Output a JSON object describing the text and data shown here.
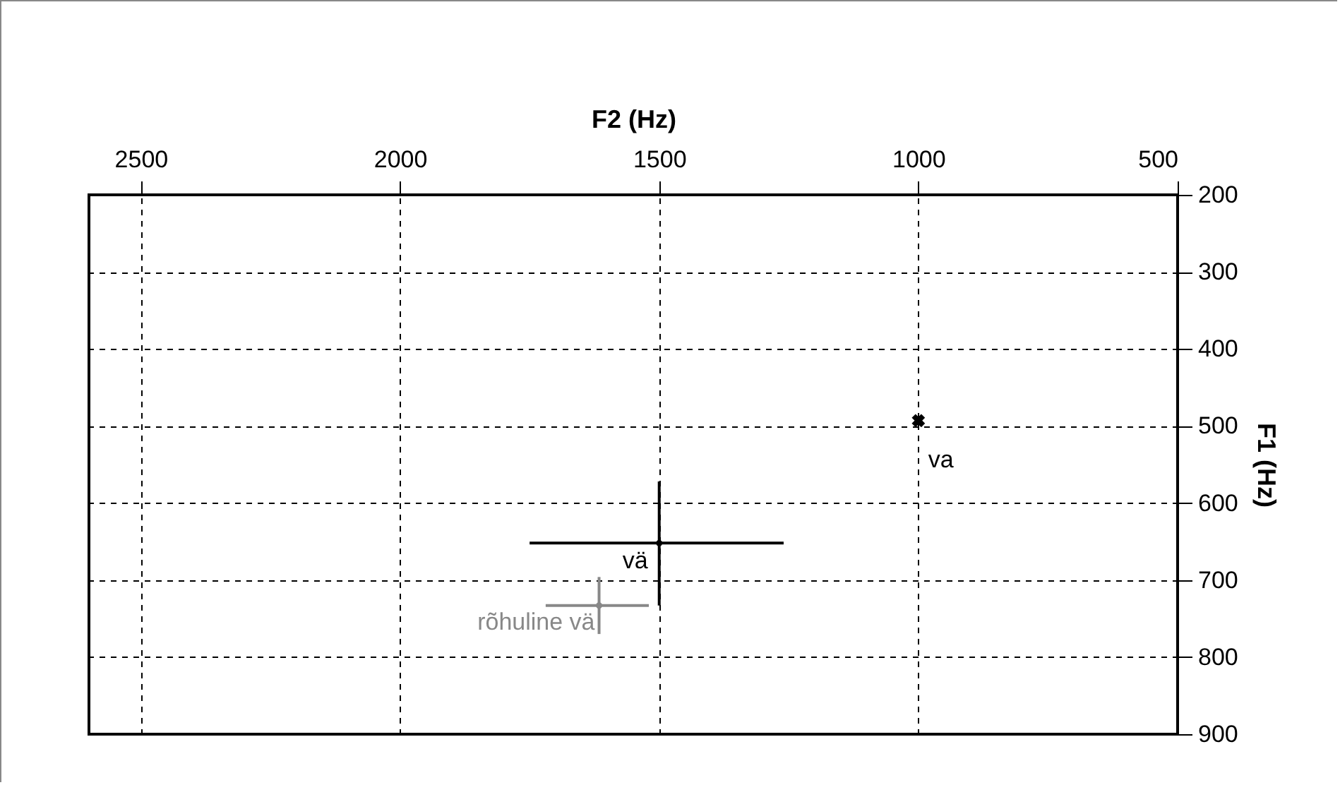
{
  "chart_data": {
    "type": "scatter",
    "xlabel": "F2 (Hz)",
    "ylabel": "F1 (Hz)",
    "xlim": [
      2600,
      500
    ],
    "ylim": [
      900,
      200
    ],
    "xticks": [
      2500,
      2000,
      1500,
      1000,
      500
    ],
    "yticks": [
      200,
      300,
      400,
      500,
      600,
      700,
      800,
      900
    ],
    "grid": true,
    "series": [
      {
        "name": "va",
        "color": "#000000",
        "marker": "cross",
        "x": [
          1000
        ],
        "values": [
          493
        ]
      },
      {
        "name": "vä",
        "color": "#000000",
        "x": [
          1500
        ],
        "values": [
          652
        ],
        "errors": [
          [
            572,
            733
          ]
        ],
        "xerrors": [
          [
            1750,
            1260
          ]
        ]
      },
      {
        "name": "rõhuline vä",
        "color": "#888888",
        "x": [
          1616
        ],
        "values": [
          733
        ],
        "errors": [
          [
            696,
            770
          ]
        ],
        "xerrors": [
          [
            1719,
            1520
          ]
        ]
      }
    ]
  }
}
